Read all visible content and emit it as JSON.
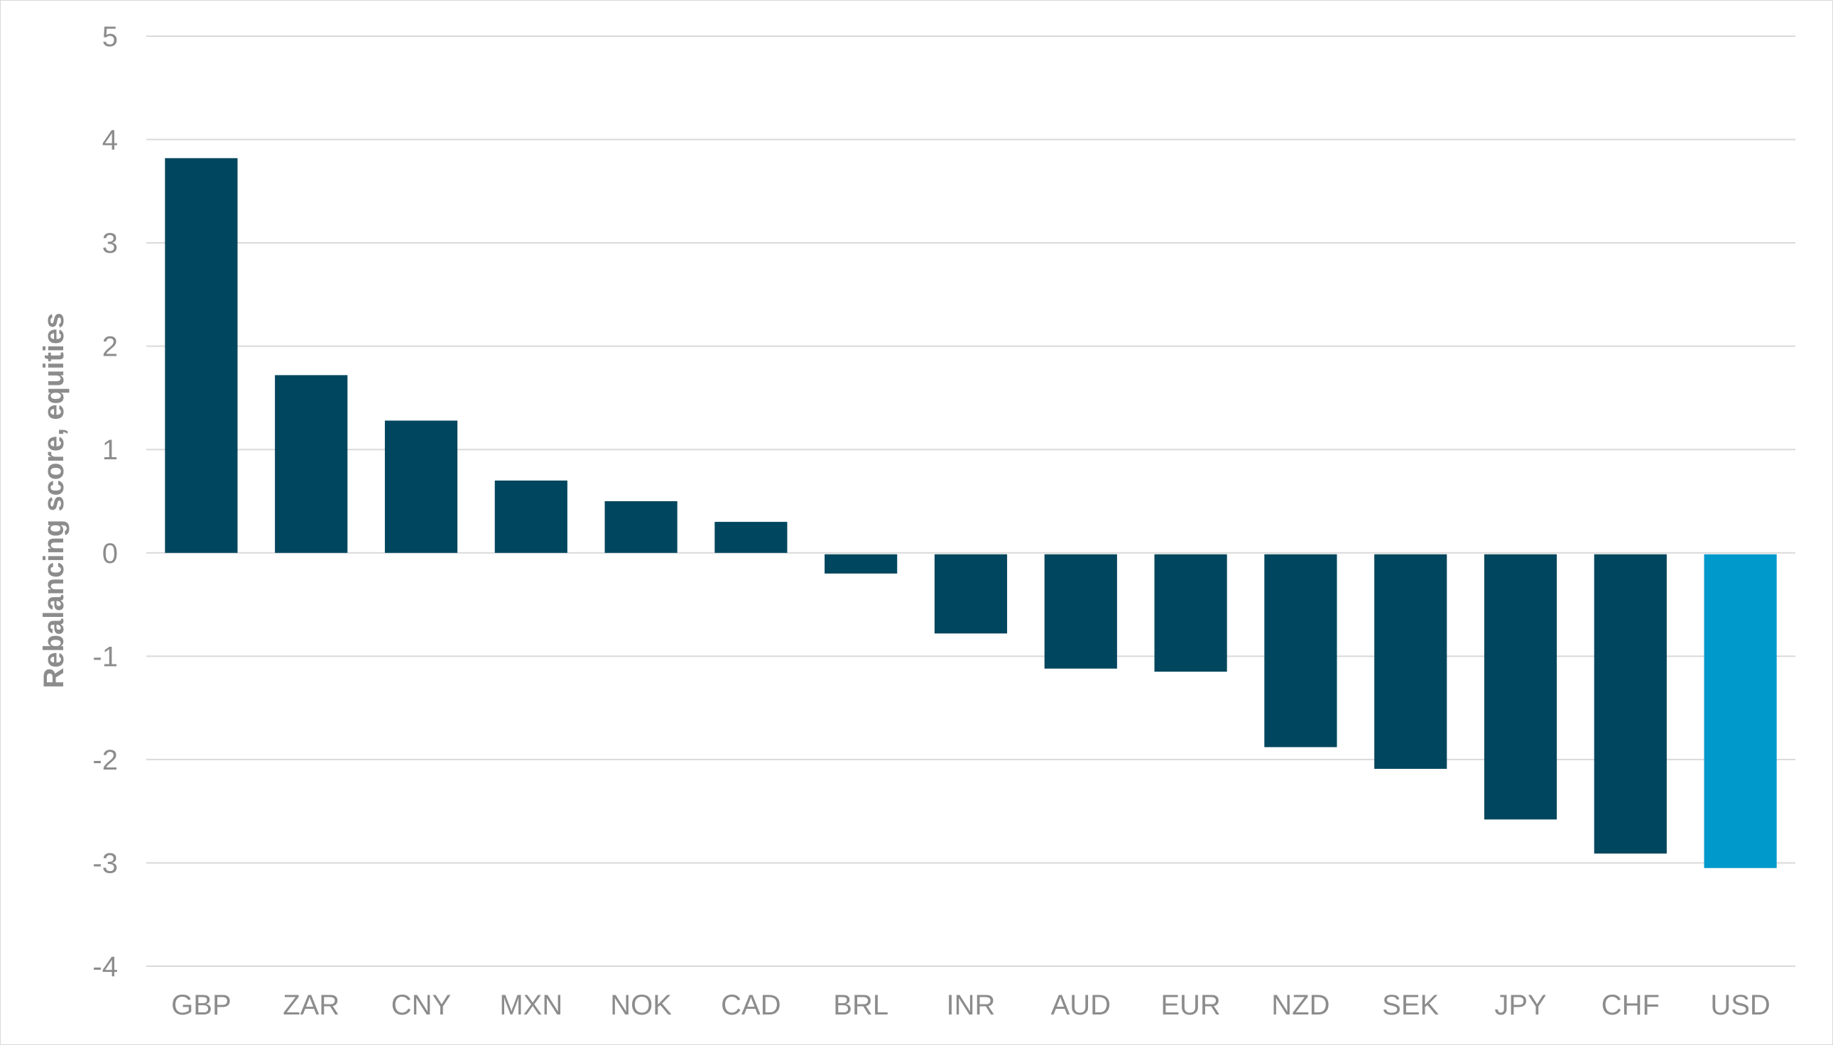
{
  "chart_data": {
    "type": "bar",
    "title": "",
    "xlabel": "",
    "ylabel": "Rebalancing score, equities",
    "categories": [
      "GBP",
      "ZAR",
      "CNY",
      "MXN",
      "NOK",
      "CAD",
      "BRL",
      "INR",
      "AUD",
      "EUR",
      "NZD",
      "SEK",
      "JPY",
      "CHF",
      "USD"
    ],
    "values": [
      3.82,
      1.72,
      1.28,
      0.7,
      0.5,
      0.3,
      -0.2,
      -0.78,
      -1.12,
      -1.15,
      -1.88,
      -2.09,
      -2.58,
      -2.91,
      -3.05
    ],
    "ylim": [
      -4,
      5
    ],
    "yticks": [
      5,
      4,
      3,
      2,
      1,
      0,
      -1,
      -2,
      -3,
      -4
    ],
    "grid": true,
    "legend": "none",
    "colors": {
      "bar": "#00465e",
      "highlight": "#0099cc",
      "highlight_category": "USD",
      "grid": "#d9d9d9",
      "text": "#8c8c8c"
    }
  }
}
